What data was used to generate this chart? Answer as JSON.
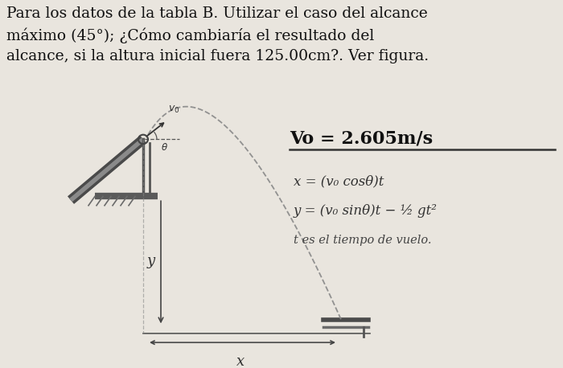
{
  "background_color": "#e9e5de",
  "title_text": "Para los datos de la tabla B. Utilizar el caso del alcance\nmáximo (45°); ¿Cómo cambiaría el resultado del\nalcance, si la altura inicial fuera 125.00cm?. Ver figura.",
  "vo_label": "Vo = 2.605m/s",
  "eq1": "x = (v₀ cosθ)t",
  "eq2": "y = (v₀ sinθ)t − ½ gt²",
  "eq3": "t es el tiempo de vuelo.",
  "x_label": "x",
  "y_label": "y",
  "title_fontsize": 13.5,
  "vo_fontsize": 16
}
